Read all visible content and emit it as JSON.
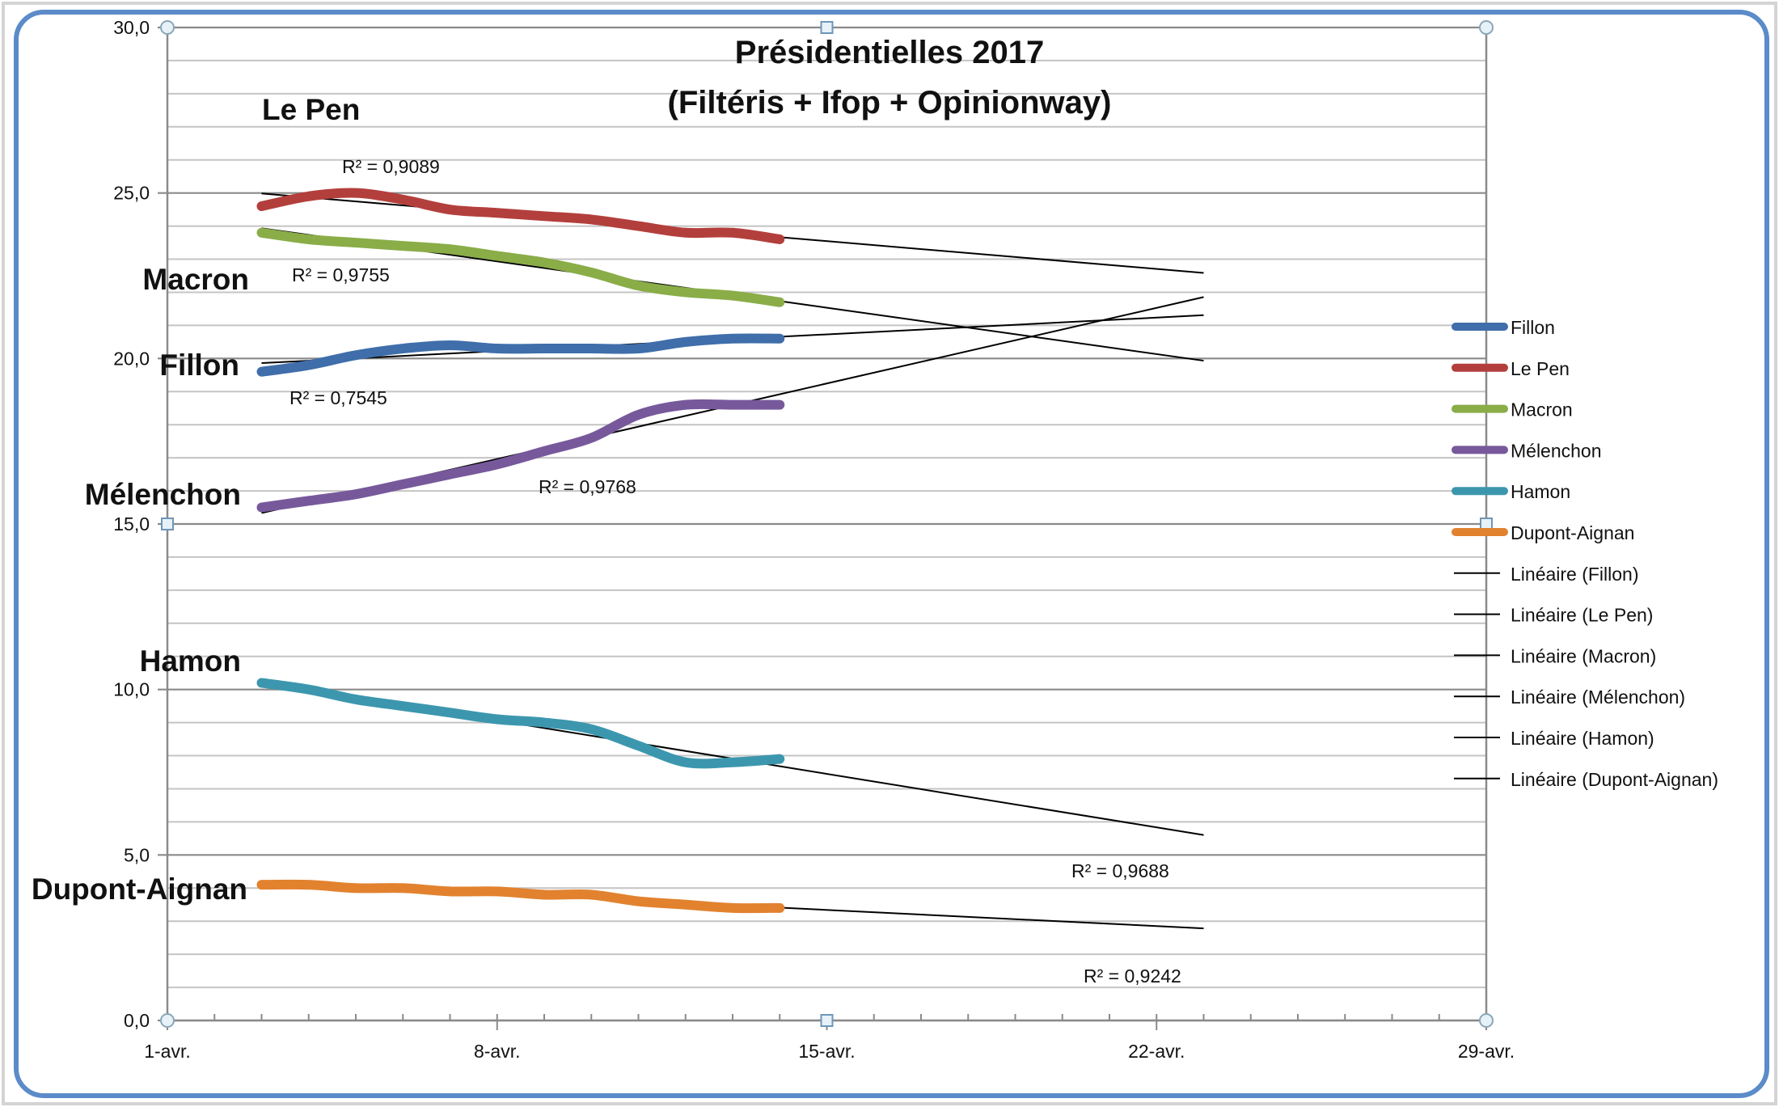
{
  "chart_data": {
    "type": "line",
    "title": [
      "Présidentielles 2017",
      "(Filtéris + Ifop + Opinionway)"
    ],
    "xlabel": "",
    "ylabel": "",
    "ylim": [
      0,
      30
    ],
    "xlim_day": [
      1,
      29
    ],
    "y_ticks": [
      "0,0",
      "5,0",
      "10,0",
      "15,0",
      "20,0",
      "25,0",
      "30,0"
    ],
    "x_ticks": [
      {
        "day": 1,
        "label": "1-avr."
      },
      {
        "day": 8,
        "label": "8-avr."
      },
      {
        "day": 15,
        "label": "15-avr."
      },
      {
        "day": 22,
        "label": "22-avr."
      },
      {
        "day": 29,
        "label": "29-avr."
      }
    ],
    "grid": true,
    "legend_position": "right",
    "x_days": [
      3,
      4,
      5,
      6,
      7,
      8,
      9,
      10,
      11,
      12,
      13,
      14
    ],
    "trendline_forecast_to_day": 23,
    "series": [
      {
        "name": "Fillon",
        "color": "#3f6eaa",
        "label": "Fillon",
        "r2": "R² = 0,7545",
        "values": [
          19.6,
          19.8,
          20.1,
          20.3,
          20.4,
          20.3,
          20.3,
          20.3,
          20.3,
          20.5,
          20.6,
          20.6
        ]
      },
      {
        "name": "Le Pen",
        "color": "#b33f3c",
        "label": "Le Pen",
        "r2": "R² = 0,9089",
        "values": [
          24.6,
          24.9,
          25.0,
          24.8,
          24.5,
          24.4,
          24.3,
          24.2,
          24.0,
          23.8,
          23.8,
          23.6
        ]
      },
      {
        "name": "Macron",
        "color": "#8aad48",
        "label": "Macron",
        "r2": "R² = 0,9755",
        "values": [
          23.8,
          23.6,
          23.5,
          23.4,
          23.3,
          23.1,
          22.9,
          22.6,
          22.2,
          22.0,
          21.9,
          21.7
        ]
      },
      {
        "name": "Mélenchon",
        "color": "#77599b",
        "label": "Mélenchon",
        "r2": "R² = 0,9768",
        "values": [
          15.5,
          15.7,
          15.9,
          16.2,
          16.5,
          16.8,
          17.2,
          17.6,
          18.3,
          18.6,
          18.6,
          18.6
        ]
      },
      {
        "name": "Hamon",
        "color": "#3c97ae",
        "label": "Hamon",
        "r2": "R² = 0,9688",
        "values": [
          10.2,
          10.0,
          9.7,
          9.5,
          9.3,
          9.1,
          9.0,
          8.8,
          8.3,
          7.8,
          7.8,
          7.9
        ]
      },
      {
        "name": "Dupont-Aignan",
        "color": "#e2822f",
        "label": "Dupont-Aignan",
        "r2": "R² = 0,9242",
        "values": [
          4.1,
          4.1,
          4.0,
          4.0,
          3.9,
          3.9,
          3.8,
          3.8,
          3.6,
          3.5,
          3.4,
          3.4
        ]
      }
    ],
    "legend": [
      "Fillon",
      "Le Pen",
      "Macron",
      "Mélenchon",
      "Hamon",
      "Dupont-Aignan",
      "Linéaire (Fillon)",
      "Linéaire (Le Pen)",
      "Linéaire (Macron)",
      "Linéaire (Mélenchon)",
      "Linéaire (Hamon)",
      "Linéaire (Dupont-Aignan)"
    ],
    "trendline_color": "#000000",
    "frame_color": "#5b8bc9"
  }
}
